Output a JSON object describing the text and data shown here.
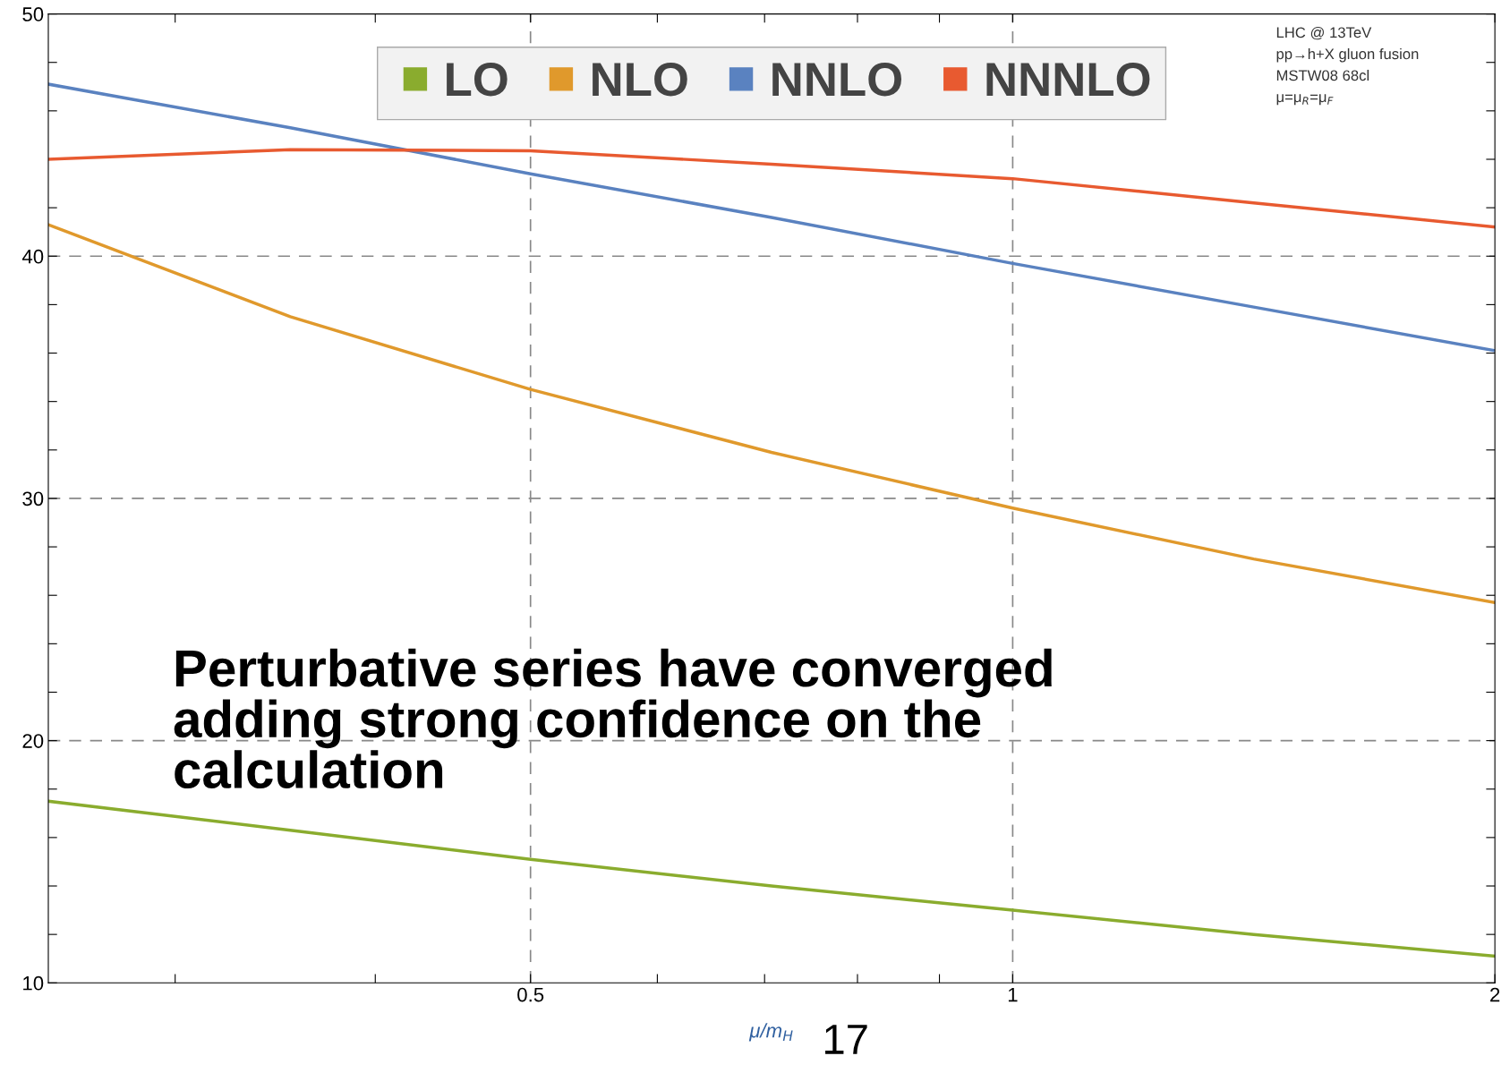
{
  "chart_data": {
    "type": "line",
    "xlabel": "μ/m$_{H}$",
    "log": "x",
    "x": [
      0.25,
      0.354,
      0.5,
      0.707,
      1,
      1.414,
      2
    ],
    "xlim": [
      0.25,
      2
    ],
    "xticks": [
      {
        "value": 0.3,
        "label": null
      },
      {
        "value": 0.4,
        "label": null
      },
      {
        "value": 0.5,
        "label": "0.5"
      },
      {
        "value": 0.6,
        "label": null
      },
      {
        "value": 0.7,
        "label": null
      },
      {
        "value": 0.8,
        "label": null
      },
      {
        "value": 0.9,
        "label": null
      },
      {
        "value": 1,
        "label": "1"
      },
      {
        "value": 2,
        "label": "2"
      }
    ],
    "ylim": [
      10,
      50
    ],
    "yticks": [
      10,
      {
        "value": 12,
        "label": null
      },
      {
        "value": 14,
        "label": null
      },
      {
        "value": 16,
        "label": null
      },
      {
        "value": 18,
        "label": null
      },
      20,
      {
        "value": 22,
        "label": null
      },
      {
        "value": 24,
        "label": null
      },
      {
        "value": 26,
        "label": null
      },
      {
        "value": 28,
        "label": null
      },
      30,
      {
        "value": 32,
        "label": null
      },
      {
        "value": 34,
        "label": null
      },
      {
        "value": 36,
        "label": null
      },
      {
        "value": 38,
        "label": null
      },
      40,
      {
        "value": 42,
        "label": null
      },
      {
        "value": 44,
        "label": null
      },
      {
        "value": 46,
        "label": null
      },
      {
        "value": 48,
        "label": null
      },
      50
    ],
    "grid": true,
    "legend": "top",
    "line_style": "solid",
    "series": [
      {
        "name": "LO",
        "color": "#8aac2e",
        "values": [
          17.5,
          16.3,
          15.1,
          14.0,
          13.0,
          12.0,
          11.1
        ]
      },
      {
        "name": "NLO",
        "color": "#e0992c",
        "values": [
          41.3,
          37.5,
          34.5,
          31.9,
          29.6,
          27.5,
          25.7
        ]
      },
      {
        "name": "NNLO",
        "color": "#5a82c0",
        "values": [
          47.1,
          45.3,
          43.4,
          41.6,
          39.7,
          37.9,
          36.1
        ]
      },
      {
        "name": "NNNLO",
        "color": "#e85a30",
        "values": [
          44.0,
          44.4,
          44.35,
          43.8,
          43.2,
          42.2,
          41.2
        ]
      }
    ],
    "annotations": [
      "LHC @ 13TeV\npp→h+X gluon fusion\nMSTW08 68cl\nμ=μ$_{R}$=μ$_{F}$",
      "Perturbative series have converged\nadding strong confidence on the\ncalculation",
      "17"
    ]
  }
}
